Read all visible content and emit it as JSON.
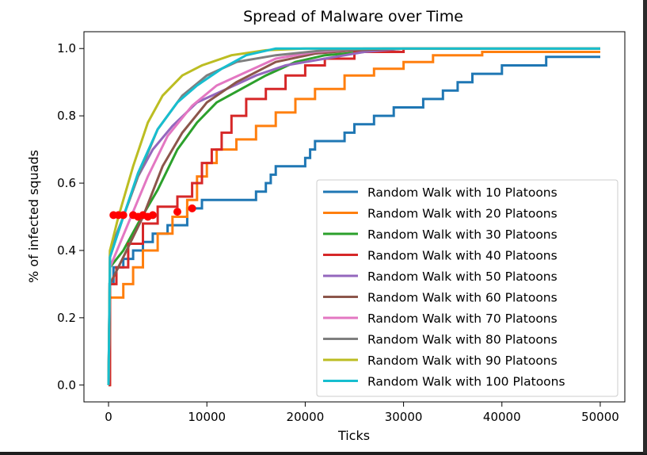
{
  "chart_data": {
    "type": "line",
    "title": "Spread of Malware over Time",
    "xlabel": "Ticks",
    "ylabel": "% of infected squads",
    "xlim": [
      -2500,
      52500
    ],
    "ylim": [
      -0.05,
      1.05
    ],
    "xticks": [
      0,
      10000,
      20000,
      30000,
      40000,
      50000
    ],
    "yticks": [
      0.0,
      0.2,
      0.4,
      0.6,
      0.8,
      1.0
    ],
    "legend_position": "lower-right",
    "grid": false,
    "series": [
      {
        "name": "Random Walk with 10 Platoons",
        "color": "#1f77b4",
        "step": true,
        "points": [
          [
            0,
            0
          ],
          [
            100,
            0.3
          ],
          [
            500,
            0.35
          ],
          [
            1500,
            0.375
          ],
          [
            2500,
            0.4
          ],
          [
            3500,
            0.425
          ],
          [
            4500,
            0.45
          ],
          [
            6000,
            0.475
          ],
          [
            8000,
            0.525
          ],
          [
            9500,
            0.55
          ],
          [
            15000,
            0.575
          ],
          [
            16000,
            0.6
          ],
          [
            16500,
            0.625
          ],
          [
            17000,
            0.65
          ],
          [
            20000,
            0.675
          ],
          [
            20500,
            0.7
          ],
          [
            21000,
            0.725
          ],
          [
            24000,
            0.75
          ],
          [
            25000,
            0.775
          ],
          [
            27000,
            0.8
          ],
          [
            29000,
            0.825
          ],
          [
            32000,
            0.85
          ],
          [
            34000,
            0.875
          ],
          [
            35500,
            0.9
          ],
          [
            37000,
            0.925
          ],
          [
            40000,
            0.95
          ],
          [
            44500,
            0.975
          ],
          [
            50000,
            0.975
          ]
        ]
      },
      {
        "name": "Random Walk with 20 Platoons",
        "color": "#ff7f0e",
        "step": true,
        "points": [
          [
            0,
            0
          ],
          [
            150,
            0.26
          ],
          [
            1500,
            0.3
          ],
          [
            2500,
            0.35
          ],
          [
            3500,
            0.4
          ],
          [
            5000,
            0.45
          ],
          [
            6500,
            0.5
          ],
          [
            8000,
            0.55
          ],
          [
            9000,
            0.62
          ],
          [
            10000,
            0.66
          ],
          [
            11000,
            0.7
          ],
          [
            13000,
            0.73
          ],
          [
            15000,
            0.77
          ],
          [
            17000,
            0.81
          ],
          [
            19000,
            0.85
          ],
          [
            21000,
            0.88
          ],
          [
            24000,
            0.92
          ],
          [
            27000,
            0.94
          ],
          [
            30000,
            0.96
          ],
          [
            33000,
            0.98
          ],
          [
            38000,
            0.99
          ],
          [
            50000,
            0.99
          ]
        ]
      },
      {
        "name": "Random Walk with 30 Platoons",
        "color": "#2ca02c",
        "step": false,
        "points": [
          [
            0,
            0
          ],
          [
            150,
            0.35
          ],
          [
            1500,
            0.4
          ],
          [
            3000,
            0.48
          ],
          [
            5000,
            0.58
          ],
          [
            7000,
            0.7
          ],
          [
            9000,
            0.78
          ],
          [
            11000,
            0.84
          ],
          [
            13500,
            0.88
          ],
          [
            16000,
            0.92
          ],
          [
            19000,
            0.96
          ],
          [
            22000,
            0.98
          ],
          [
            26000,
            0.99
          ],
          [
            30000,
            1.0
          ],
          [
            50000,
            1.0
          ]
        ]
      },
      {
        "name": "Random Walk with 40 Platoons",
        "color": "#d62728",
        "step": true,
        "points": [
          [
            0,
            0
          ],
          [
            150,
            0.3
          ],
          [
            800,
            0.35
          ],
          [
            2000,
            0.42
          ],
          [
            3500,
            0.48
          ],
          [
            5000,
            0.53
          ],
          [
            7000,
            0.56
          ],
          [
            8500,
            0.6
          ],
          [
            9500,
            0.66
          ],
          [
            10500,
            0.7
          ],
          [
            11500,
            0.75
          ],
          [
            12500,
            0.8
          ],
          [
            14000,
            0.85
          ],
          [
            16000,
            0.88
          ],
          [
            18000,
            0.92
          ],
          [
            20000,
            0.95
          ],
          [
            22000,
            0.97
          ],
          [
            25000,
            0.99
          ],
          [
            30000,
            1.0
          ],
          [
            50000,
            1.0
          ]
        ]
      },
      {
        "name": "Random Walk with 50 Platoons",
        "color": "#9467bd",
        "step": false,
        "points": [
          [
            0,
            0
          ],
          [
            150,
            0.38
          ],
          [
            1500,
            0.5
          ],
          [
            3000,
            0.62
          ],
          [
            4500,
            0.7
          ],
          [
            6500,
            0.77
          ],
          [
            9000,
            0.84
          ],
          [
            12000,
            0.88
          ],
          [
            15000,
            0.92
          ],
          [
            18000,
            0.95
          ],
          [
            22000,
            0.97
          ],
          [
            26000,
            0.99
          ],
          [
            30000,
            1.0
          ],
          [
            50000,
            1.0
          ]
        ]
      },
      {
        "name": "Random Walk with 60 Platoons",
        "color": "#8c564b",
        "step": false,
        "points": [
          [
            0,
            0
          ],
          [
            150,
            0.3
          ],
          [
            1500,
            0.38
          ],
          [
            3500,
            0.5
          ],
          [
            5500,
            0.65
          ],
          [
            7500,
            0.75
          ],
          [
            10000,
            0.84
          ],
          [
            13000,
            0.9
          ],
          [
            17000,
            0.96
          ],
          [
            21000,
            0.985
          ],
          [
            25000,
            0.995
          ],
          [
            30000,
            1.0
          ],
          [
            50000,
            1.0
          ]
        ]
      },
      {
        "name": "Random Walk with 70 Platoons",
        "color": "#e377c2",
        "step": false,
        "points": [
          [
            0,
            0
          ],
          [
            150,
            0.35
          ],
          [
            2000,
            0.48
          ],
          [
            4000,
            0.62
          ],
          [
            6000,
            0.74
          ],
          [
            8500,
            0.83
          ],
          [
            11000,
            0.89
          ],
          [
            14000,
            0.93
          ],
          [
            17000,
            0.97
          ],
          [
            21000,
            0.99
          ],
          [
            26000,
            1.0
          ],
          [
            50000,
            1.0
          ]
        ]
      },
      {
        "name": "Random Walk with 80 Platoons",
        "color": "#7f7f7f",
        "step": false,
        "points": [
          [
            0,
            0
          ],
          [
            150,
            0.4
          ],
          [
            1500,
            0.5
          ],
          [
            3000,
            0.62
          ],
          [
            5000,
            0.76
          ],
          [
            7500,
            0.86
          ],
          [
            10000,
            0.92
          ],
          [
            13000,
            0.96
          ],
          [
            17000,
            0.98
          ],
          [
            22000,
            0.995
          ],
          [
            28000,
            1.0
          ],
          [
            50000,
            1.0
          ]
        ]
      },
      {
        "name": "Random Walk with 90 Platoons",
        "color": "#bcbd22",
        "step": false,
        "points": [
          [
            0,
            0
          ],
          [
            150,
            0.4
          ],
          [
            1000,
            0.5
          ],
          [
            2500,
            0.65
          ],
          [
            4000,
            0.78
          ],
          [
            5500,
            0.86
          ],
          [
            7500,
            0.92
          ],
          [
            9500,
            0.95
          ],
          [
            12500,
            0.98
          ],
          [
            16000,
            0.995
          ],
          [
            20000,
            1.0
          ],
          [
            50000,
            1.0
          ]
        ]
      },
      {
        "name": "Random Walk with 100 Platoons",
        "color": "#17becf",
        "step": false,
        "points": [
          [
            0,
            0
          ],
          [
            150,
            0.38
          ],
          [
            1500,
            0.5
          ],
          [
            3000,
            0.63
          ],
          [
            5000,
            0.76
          ],
          [
            7000,
            0.84
          ],
          [
            9000,
            0.89
          ],
          [
            11500,
            0.94
          ],
          [
            14000,
            0.98
          ],
          [
            17000,
            1.0
          ],
          [
            50000,
            1.0
          ]
        ]
      }
    ],
    "markers": {
      "color": "#ff0000",
      "points": [
        [
          500,
          0.505
        ],
        [
          1000,
          0.505
        ],
        [
          1500,
          0.505
        ],
        [
          2500,
          0.505
        ],
        [
          3000,
          0.5
        ],
        [
          3500,
          0.505
        ],
        [
          4000,
          0.5
        ],
        [
          4500,
          0.505
        ],
        [
          7000,
          0.515
        ],
        [
          8500,
          0.525
        ]
      ]
    }
  }
}
